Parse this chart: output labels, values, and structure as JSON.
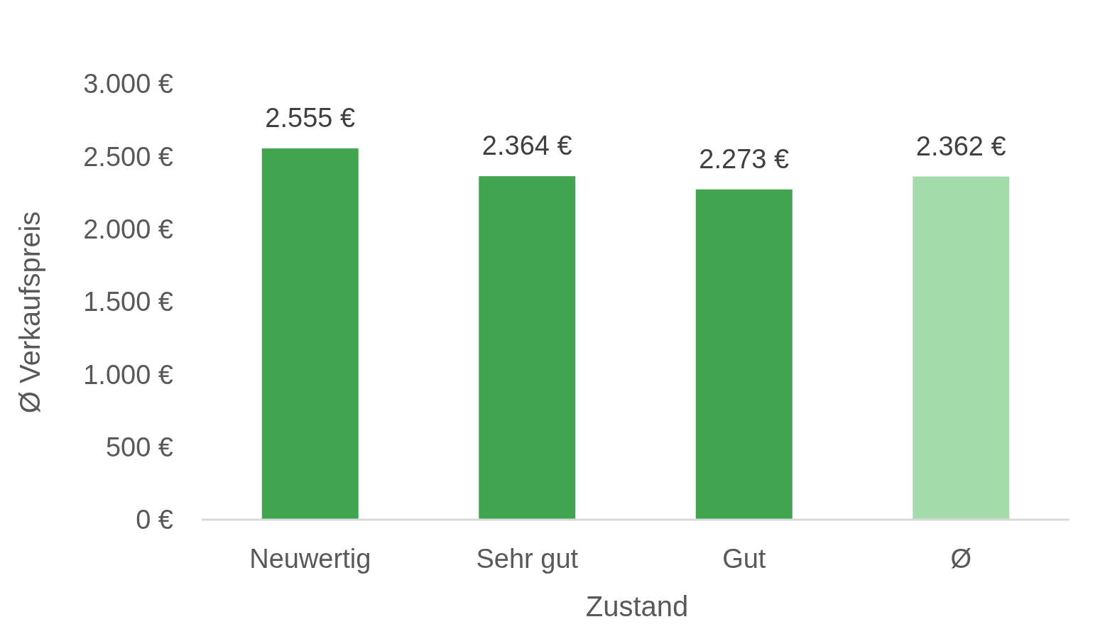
{
  "chart_data": {
    "type": "bar",
    "xlabel": "Zustand",
    "ylabel": "Ø Verkaufspreis",
    "categories": [
      "Neuwertig",
      "Sehr gut",
      "Gut",
      "Ø"
    ],
    "values": [
      2555,
      2364,
      2273,
      2362
    ],
    "colors": [
      "#41a44e",
      "#41a44e",
      "#41a44e",
      "#a3dbaa"
    ],
    "value_labels": [
      "2.555 €",
      "2.364 €",
      "2.273 €",
      "2.362 €"
    ],
    "ylim": [
      0,
      3000
    ],
    "yticks": [
      {
        "value": 0,
        "label": "0 €"
      },
      {
        "value": 500,
        "label": "500 €"
      },
      {
        "value": 1000,
        "label": "1.000 €"
      },
      {
        "value": 1500,
        "label": "1.500 €"
      },
      {
        "value": 2000,
        "label": "2.000 €"
      },
      {
        "value": 2500,
        "label": "2.500 €"
      },
      {
        "value": 3000,
        "label": "3.000 €"
      }
    ],
    "grid": false
  }
}
